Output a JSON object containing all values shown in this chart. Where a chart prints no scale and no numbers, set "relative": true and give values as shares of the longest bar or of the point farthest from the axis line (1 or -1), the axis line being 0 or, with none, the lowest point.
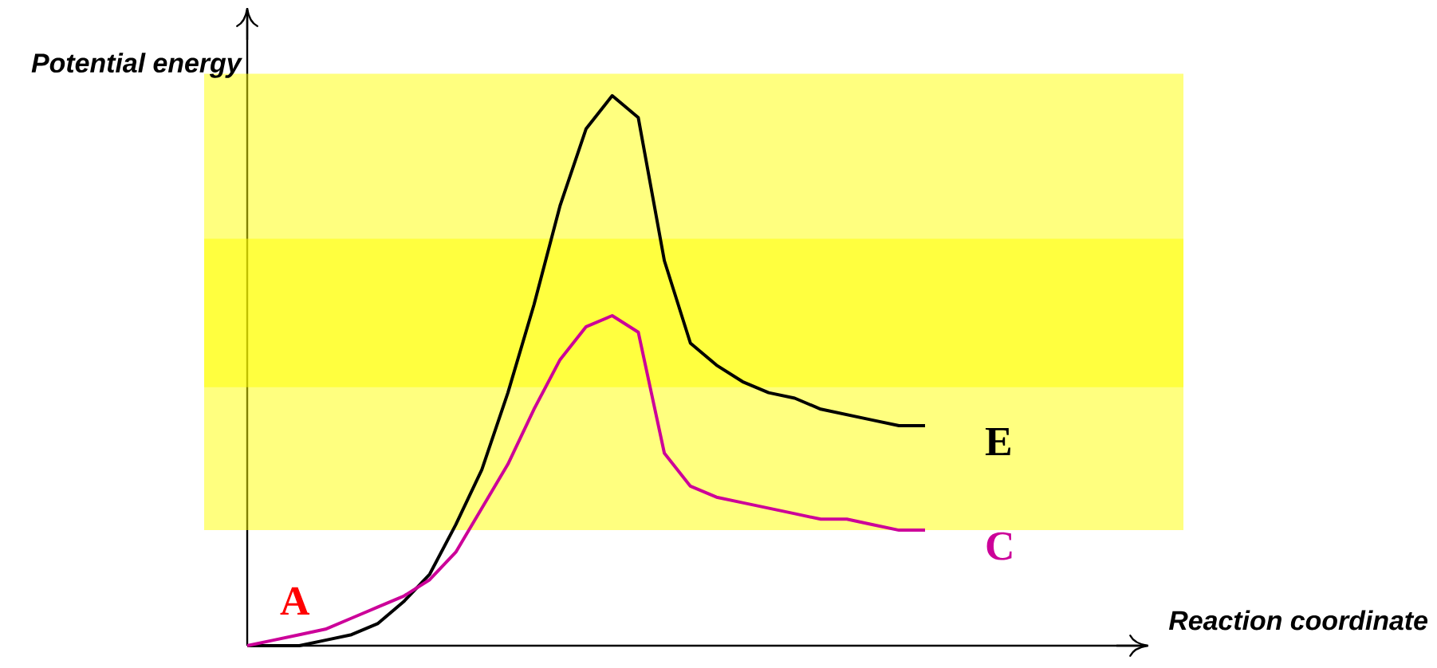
{
  "chart_data": {
    "type": "line",
    "relative": true,
    "ylabel": "Potential energy",
    "legend": false,
    "marker": "none",
    "line_style": "solid",
    "categories": [
      null,
      null,
      null,
      null,
      null,
      null,
      null,
      null,
      null,
      null,
      null,
      null,
      null,
      null,
      null,
      null,
      null,
      null,
      null,
      null,
      null,
      null,
      null,
      null,
      null,
      null,
      null
    ],
    "series": [
      {
        "name": "E",
        "color": "#000000",
        "values": [
          0,
          0,
          0,
          0.01,
          0.02,
          0.04,
          0.08,
          0.13,
          0.22,
          0.32,
          0.46,
          0.62,
          0.8,
          0.94,
          1,
          0.96,
          0.7,
          0.55,
          0.51,
          0.48,
          0.46,
          0.45,
          0.43,
          0.42,
          0.41,
          0.4,
          0.4
        ]
      },
      {
        "name": "C",
        "color": "#cc0099",
        "values": [
          0,
          0.01,
          0.02,
          0.03,
          0.05,
          0.07,
          0.09,
          0.12,
          0.17,
          0.25,
          0.33,
          0.43,
          0.52,
          0.58,
          0.6,
          0.57,
          0.35,
          0.29,
          0.27,
          0.26,
          0.25,
          0.24,
          0.23,
          0.23,
          0.22,
          0.21,
          0.21
        ]
      }
    ],
    "bands": [
      {
        "axis": "y",
        "from": 0.21,
        "to": 1.04,
        "color": "#ffff00"
      },
      {
        "axis": "y",
        "from": 0.47,
        "to": 0.74,
        "color": "#ffff00"
      }
    ],
    "annotations": [
      "A",
      "Reaction coordinate"
    ]
  }
}
